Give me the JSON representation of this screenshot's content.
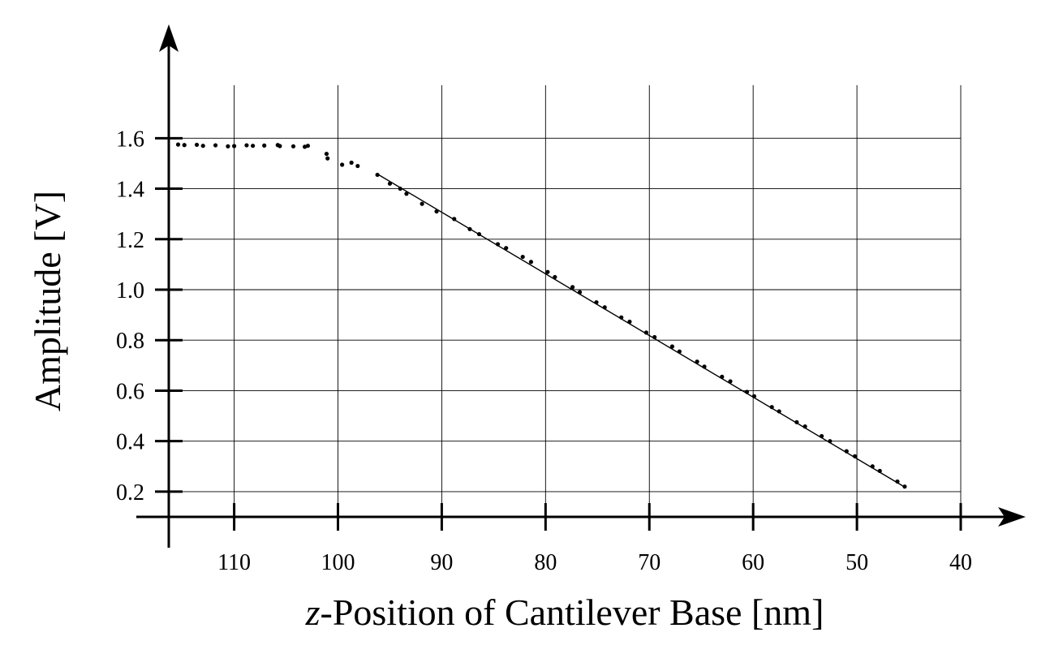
{
  "chart_data": {
    "type": "scatter",
    "title": "",
    "xlabel_italic": "z",
    "xlabel_rest": "-Position of Cantilever Base [nm]",
    "ylabel": "Amplitude [V]",
    "x_reversed": true,
    "xlim": [
      116.3,
      40
    ],
    "ylim": [
      0.1,
      1.81
    ],
    "x_ticks": [
      110,
      100,
      90,
      80,
      70,
      60,
      50,
      40
    ],
    "x_tick_labels": [
      "110",
      "100",
      "90",
      "80",
      "70",
      "60",
      "50",
      "40"
    ],
    "y_ticks": [
      0.2,
      0.4,
      0.6,
      0.8,
      1.0,
      1.2,
      1.4,
      1.6
    ],
    "y_tick_labels": [
      "0.2",
      "0.4",
      "0.6",
      "0.8",
      "1.0",
      "1.2",
      "1.4",
      "1.6"
    ],
    "grid": true,
    "series": [
      {
        "kind": "points",
        "points": [
          [
            115.4,
            1.575
          ],
          [
            114.8,
            1.573
          ],
          [
            113.6,
            1.574
          ],
          [
            113.0,
            1.57
          ],
          [
            111.8,
            1.572
          ],
          [
            110.6,
            1.568
          ],
          [
            110.0,
            1.569
          ],
          [
            108.8,
            1.572
          ],
          [
            108.2,
            1.57
          ],
          [
            107.1,
            1.571
          ],
          [
            105.8,
            1.573
          ],
          [
            105.6,
            1.569
          ],
          [
            104.3,
            1.568
          ],
          [
            103.2,
            1.566
          ],
          [
            102.9,
            1.57
          ],
          [
            101.1,
            1.538
          ],
          [
            101.0,
            1.52
          ],
          [
            99.6,
            1.495
          ],
          [
            98.7,
            1.503
          ],
          [
            98.1,
            1.49
          ],
          [
            96.2,
            1.455
          ],
          [
            95.0,
            1.42
          ],
          [
            94.0,
            1.4
          ],
          [
            93.4,
            1.38
          ],
          [
            91.9,
            1.34
          ],
          [
            90.5,
            1.31
          ],
          [
            88.8,
            1.28
          ],
          [
            87.3,
            1.24
          ],
          [
            86.4,
            1.22
          ],
          [
            84.6,
            1.18
          ],
          [
            83.8,
            1.165
          ],
          [
            82.2,
            1.13
          ],
          [
            81.4,
            1.11
          ],
          [
            79.8,
            1.07
          ],
          [
            79.1,
            1.05
          ],
          [
            77.4,
            1.01
          ],
          [
            76.7,
            0.99
          ],
          [
            75.1,
            0.95
          ],
          [
            74.3,
            0.93
          ],
          [
            72.7,
            0.89
          ],
          [
            71.9,
            0.873
          ],
          [
            70.3,
            0.83
          ],
          [
            69.5,
            0.812
          ],
          [
            67.8,
            0.775
          ],
          [
            67.1,
            0.755
          ],
          [
            65.4,
            0.715
          ],
          [
            64.7,
            0.695
          ],
          [
            63.0,
            0.655
          ],
          [
            62.2,
            0.637
          ],
          [
            60.6,
            0.595
          ],
          [
            59.9,
            0.578
          ],
          [
            58.2,
            0.535
          ],
          [
            57.5,
            0.518
          ],
          [
            55.8,
            0.475
          ],
          [
            55.0,
            0.458
          ],
          [
            53.4,
            0.42
          ],
          [
            52.6,
            0.4
          ],
          [
            51.0,
            0.36
          ],
          [
            50.2,
            0.34
          ],
          [
            48.5,
            0.3
          ],
          [
            47.8,
            0.282
          ],
          [
            46.1,
            0.24
          ],
          [
            45.4,
            0.22
          ]
        ]
      },
      {
        "kind": "line",
        "points": [
          [
            96.2,
            1.458
          ],
          [
            45.4,
            0.218
          ]
        ]
      }
    ]
  }
}
